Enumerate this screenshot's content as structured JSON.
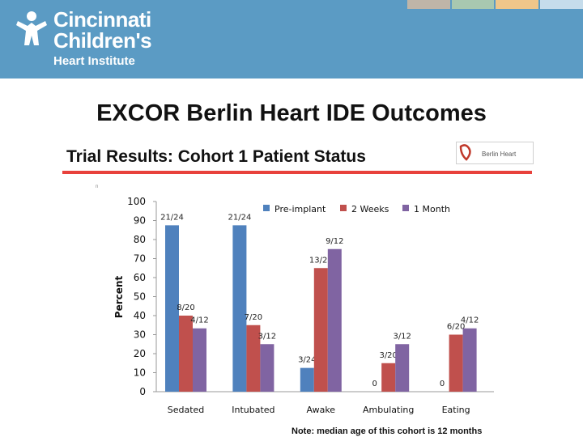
{
  "header": {
    "logo_line1": "Cincinnati",
    "logo_line2": "Children's",
    "logo_line3": "Heart Institute",
    "band_color": "#5b9bc4",
    "stripe_colors": [
      "#bfb5a8",
      "#a8c8b0",
      "#f0c68a",
      "#c5dceb"
    ]
  },
  "slide": {
    "title": "EXCOR Berlin Heart IDE Outcomes",
    "subtitle": "Trial Results: Cohort 1 Patient Status",
    "brand_label": "Berlin Heart",
    "tiny_mark": "n",
    "note": "Note: median age of this cohort is 12 months"
  },
  "chart_data": {
    "type": "bar",
    "ylabel": "Percent",
    "ylim": [
      0,
      100
    ],
    "yticks": [
      0,
      10,
      20,
      30,
      40,
      50,
      60,
      70,
      80,
      90,
      100
    ],
    "categories": [
      "Sedated",
      "Intubated",
      "Awake",
      "Ambulating",
      "Eating"
    ],
    "legend_position": "top-right",
    "series": [
      {
        "name": "Pre-implant",
        "color": "#4f81bd",
        "values": [
          87.5,
          87.5,
          12.5,
          0,
          0
        ],
        "labels": [
          "21/24",
          "21/24",
          "3/24",
          "0",
          "0"
        ]
      },
      {
        "name": "2 Weeks",
        "color": "#c0504d",
        "values": [
          40,
          35,
          65,
          15,
          30
        ],
        "labels": [
          "8/20",
          "7/20",
          "13/20",
          "3/20",
          "6/20"
        ]
      },
      {
        "name": "1 Month",
        "color": "#8064a2",
        "values": [
          33.3,
          25,
          75,
          25,
          33.3
        ],
        "labels": [
          "4/12",
          "3/12",
          "9/12",
          "3/12",
          "4/12"
        ]
      }
    ]
  }
}
